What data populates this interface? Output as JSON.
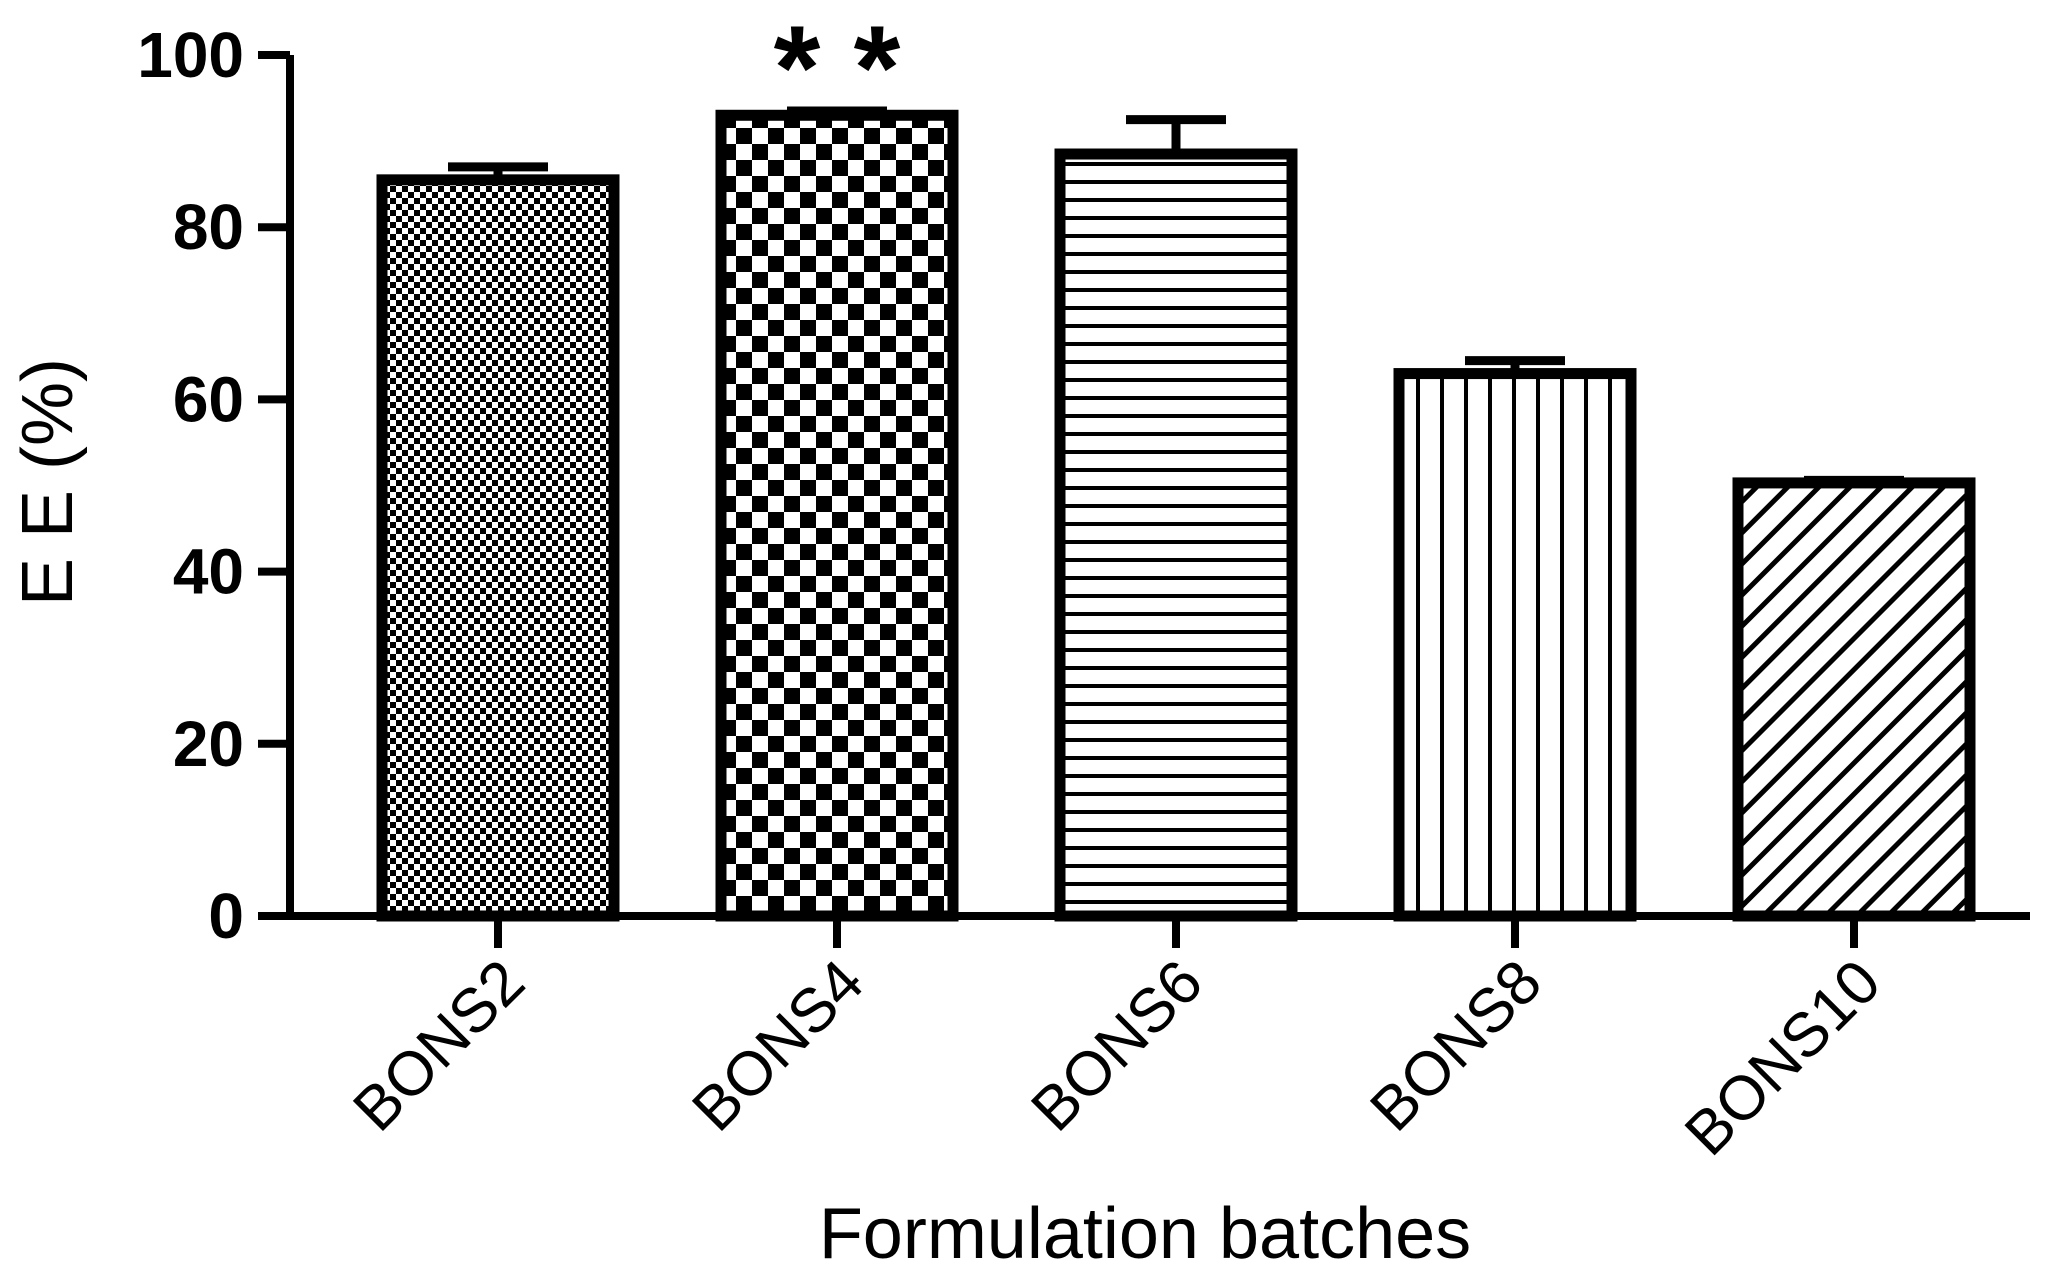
{
  "chart_data": {
    "type": "bar",
    "title": "",
    "xlabel": "Formulation batches",
    "ylabel": "E E (%)",
    "ylim": [
      0,
      100
    ],
    "yticks": [
      "0",
      "20",
      "40",
      "60",
      "80",
      "100"
    ],
    "categories": [
      "BONS2",
      "BONS4",
      "BONS6",
      "BONS8",
      "BONS10"
    ],
    "values": [
      85.5,
      93,
      88.5,
      63,
      50.3
    ],
    "errors": [
      1.5,
      0.5,
      4,
      1.5,
      0.3
    ],
    "patterns": [
      "fine-checker",
      "checker",
      "horizontal-lines",
      "vertical-lines",
      "diagonal-lines"
    ],
    "annotations": [
      {
        "category": "BONS4",
        "text": "* *"
      }
    ],
    "grid": false,
    "legend": "none",
    "colors": {
      "stroke": "#000000",
      "fill": "#ffffff"
    }
  }
}
